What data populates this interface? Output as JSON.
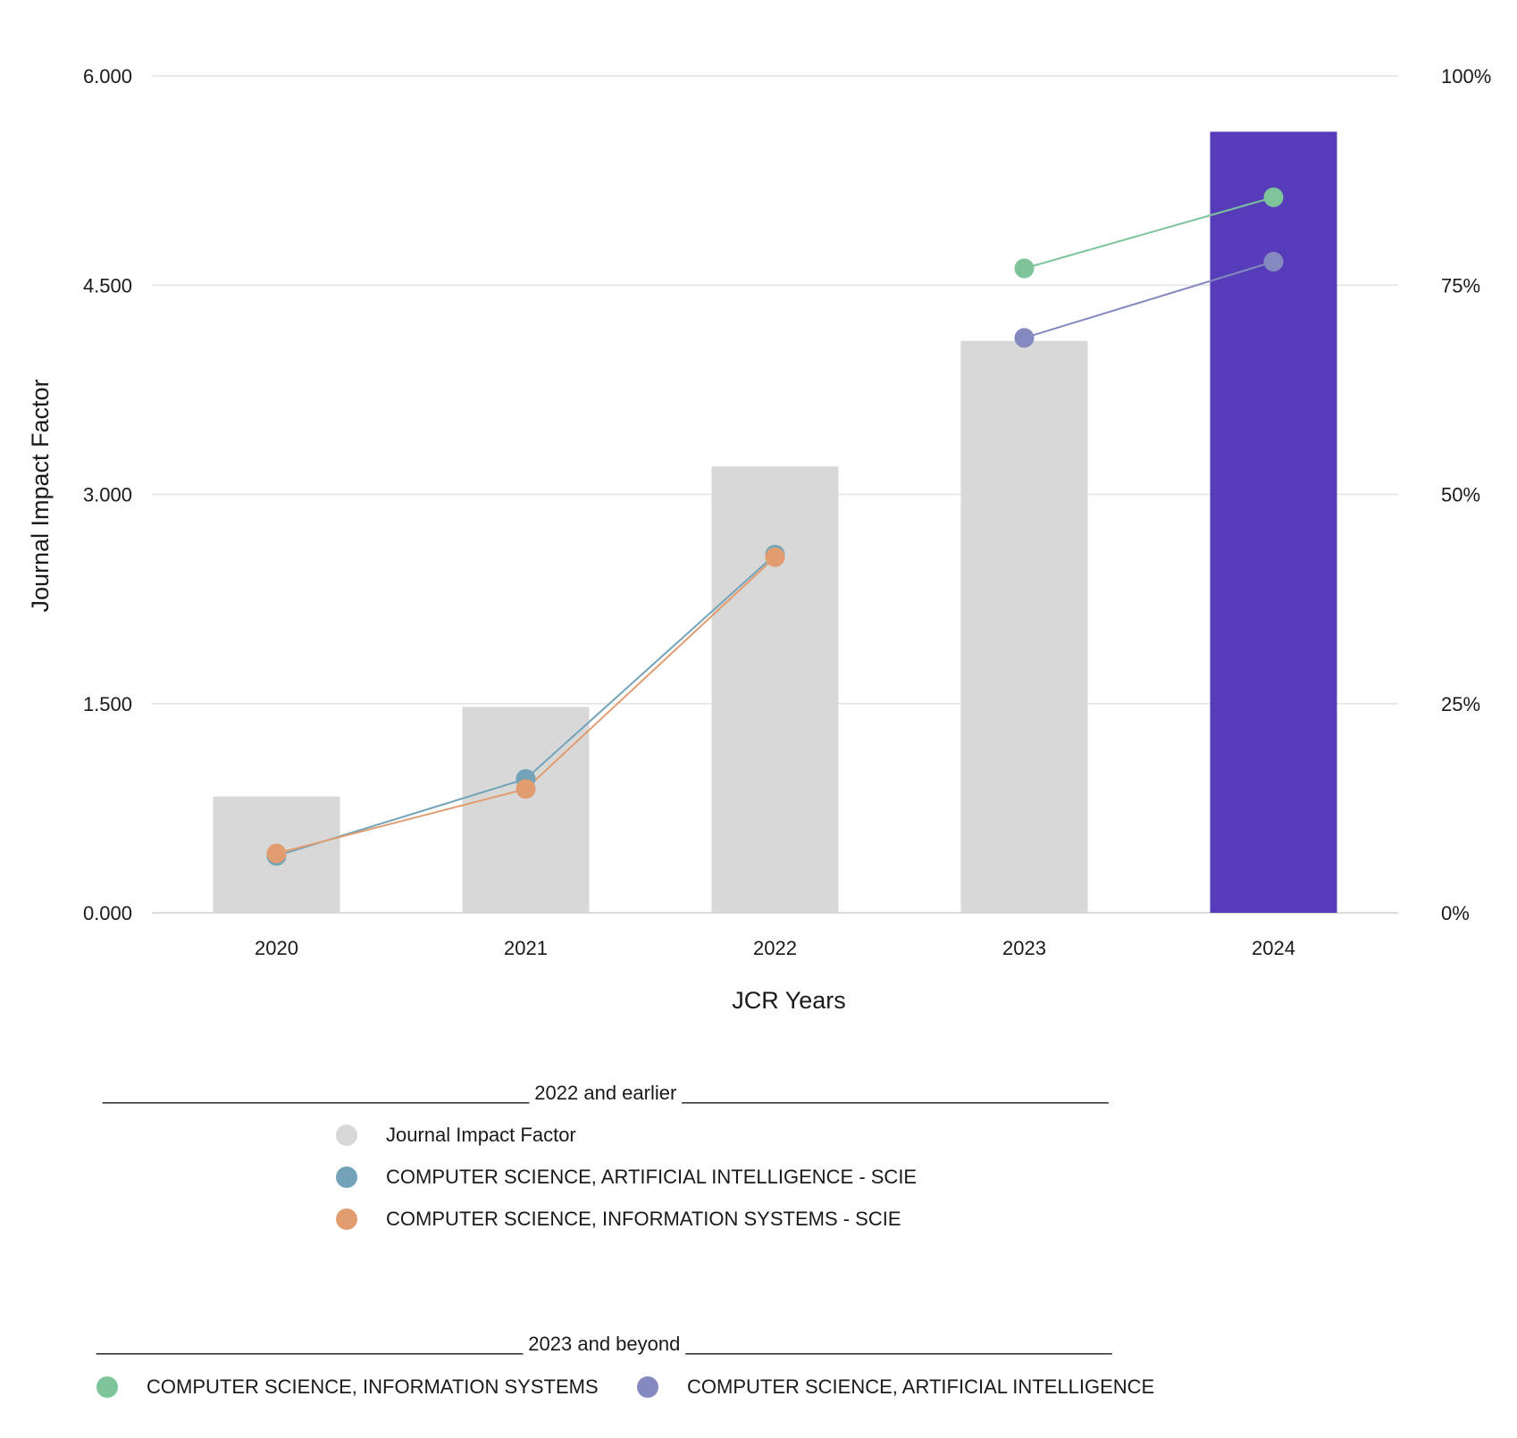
{
  "chart_data": {
    "type": "bar",
    "categories": [
      "2020",
      "2021",
      "2022",
      "2023",
      "2024"
    ],
    "values": [
      0.834,
      1.476,
      3.2,
      4.1,
      5.6
    ],
    "highlight_category": "2024",
    "ylabel": "Journal Impact Factor",
    "xlabel": "JCR Years",
    "ylim": [
      0,
      6
    ],
    "y_ticks": [
      "0.000",
      "1.500",
      "3.000",
      "4.500",
      "6.000"
    ],
    "y2lim": [
      0,
      100
    ],
    "y2_ticks": [
      "0%",
      "25%",
      "50%",
      "75%",
      "100%"
    ],
    "grid": true,
    "colors": {
      "bar": "#d8d8d8",
      "highlight_bar": "#573cb9"
    },
    "series": [
      {
        "name": "COMPUTER SCIENCE, ARTIFICIAL INTELLIGENCE - SCIE",
        "axis": "right",
        "color": "#72a3b9",
        "x": [
          "2020",
          "2021",
          "2022"
        ],
        "values": [
          6.8,
          16.0,
          42.8
        ]
      },
      {
        "name": "COMPUTER SCIENCE, INFORMATION SYSTEMS - SCIE",
        "axis": "right",
        "color": "#e19c6f",
        "x": [
          "2020",
          "2021",
          "2022"
        ],
        "values": [
          7.1,
          14.8,
          42.5
        ]
      },
      {
        "name": "COMPUTER SCIENCE, INFORMATION SYSTEMS",
        "axis": "right",
        "color": "#7ec49b",
        "x": [
          "2023",
          "2024"
        ],
        "values": [
          77.0,
          85.5
        ]
      },
      {
        "name": "COMPUTER SCIENCE, ARTIFICIAL INTELLIGENCE",
        "axis": "right",
        "color": "#8489c0",
        "x": [
          "2023",
          "2024"
        ],
        "values": [
          68.7,
          77.8
        ]
      }
    ],
    "legend": {
      "group1": {
        "heading": "_______________________________________ 2022 and earlier _______________________________________",
        "items": [
          {
            "label": "Journal Impact Factor",
            "color": "#d8d8d8"
          },
          {
            "label": "COMPUTER SCIENCE, ARTIFICIAL INTELLIGENCE - SCIE",
            "color": "#72a3b9"
          },
          {
            "label": "COMPUTER SCIENCE, INFORMATION SYSTEMS - SCIE",
            "color": "#e19c6f"
          }
        ]
      },
      "group2": {
        "heading": "_______________________________________ 2023 and beyond _______________________________________",
        "items": [
          {
            "label": "COMPUTER SCIENCE, INFORMATION SYSTEMS",
            "color": "#7ec49b"
          },
          {
            "label": "COMPUTER SCIENCE, ARTIFICIAL INTELLIGENCE",
            "color": "#8489c0"
          }
        ]
      }
    }
  }
}
